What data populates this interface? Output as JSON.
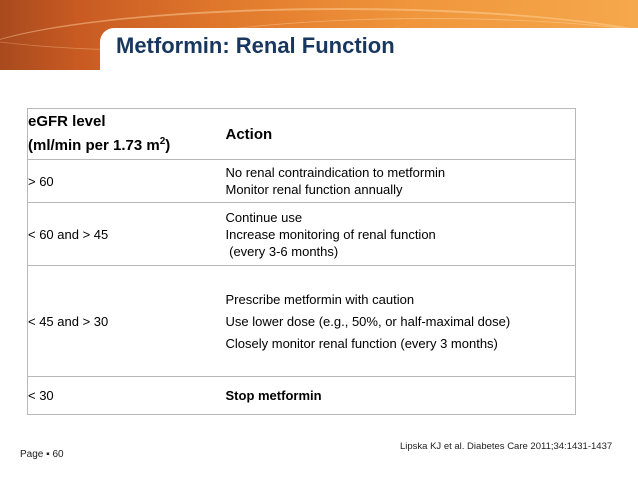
{
  "slide": {
    "title": "Metformin: Renal Function"
  },
  "table": {
    "header": {
      "level_line1": "eGFR level",
      "level_line2": "(ml/min per 1.73 m",
      "level_sup": "2",
      "level_close": ")",
      "action": "Action"
    },
    "rows": [
      {
        "level": "> 60",
        "action_lines": [
          "No renal contraindication to metformin",
          "Monitor renal function annually"
        ]
      },
      {
        "level": "< 60 and > 45",
        "action_lines": [
          "Continue use",
          "Increase monitoring of renal function",
          "(every 3-6 months)"
        ]
      },
      {
        "level": "< 45 and > 30",
        "action_lines": [
          "Prescribe metformin with caution",
          "Use lower dose (e.g., 50%, or half-maximal dose)",
          "Closely monitor renal function (every 3 months)"
        ]
      },
      {
        "level": "< 30",
        "action_lines": [
          "Stop metformin"
        ]
      }
    ]
  },
  "footer": {
    "page": "Page ▪ 60",
    "reference": "Lipska KJ et al. Diabetes Care 2011;34:1431-1437"
  }
}
